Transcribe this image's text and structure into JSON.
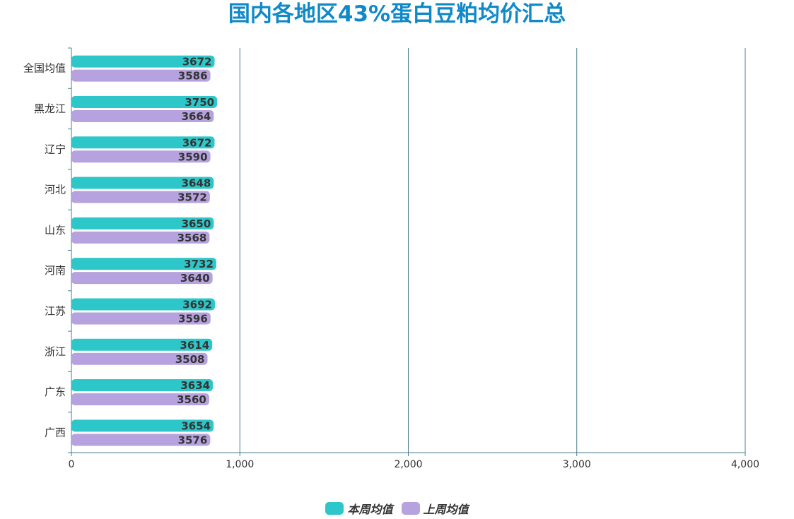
{
  "title": "国内各地区43%蛋白豆粕均价汇总",
  "title_color": "#1089c8",
  "colors": {
    "current": "#2ec7c9",
    "previous": "#b6a2de",
    "axis": "#4a7f8c",
    "grid": "#4a7f8c",
    "text": "#333333"
  },
  "legend": [
    {
      "label": "本周均值",
      "color": "#2ec7c9"
    },
    {
      "label": "上周均值",
      "color": "#b6a2de"
    }
  ],
  "chart_data": {
    "type": "bar",
    "orientation": "horizontal",
    "title": "国内各地区43%蛋白豆粕均价汇总",
    "categories": [
      "全国均值",
      "黑龙江",
      "辽宁",
      "河北",
      "山东",
      "河南",
      "江苏",
      "浙江",
      "广东",
      "广西"
    ],
    "series": [
      {
        "name": "本周均值",
        "color": "#2ec7c9",
        "values": [
          3672,
          3750,
          3672,
          3648,
          3650,
          3732,
          3692,
          3614,
          3634,
          3654
        ]
      },
      {
        "name": "上周均值",
        "color": "#b6a2de",
        "values": [
          3586,
          3664,
          3590,
          3572,
          3568,
          3640,
          3596,
          3508,
          3560,
          3576
        ]
      }
    ],
    "bar_length_values": [
      [
        850,
        865,
        850,
        845,
        845,
        860,
        852,
        836,
        840,
        844
      ],
      [
        825,
        845,
        825,
        822,
        820,
        838,
        826,
        808,
        818,
        824
      ]
    ],
    "xlim": [
      0,
      4000
    ],
    "xticks": [
      "0",
      "1,000",
      "2,000",
      "3,000",
      "4,000"
    ],
    "xtick_values": [
      0,
      1000,
      2000,
      3000,
      4000
    ],
    "grid": true,
    "data_labels": true,
    "legend_position": "bottom-center"
  }
}
